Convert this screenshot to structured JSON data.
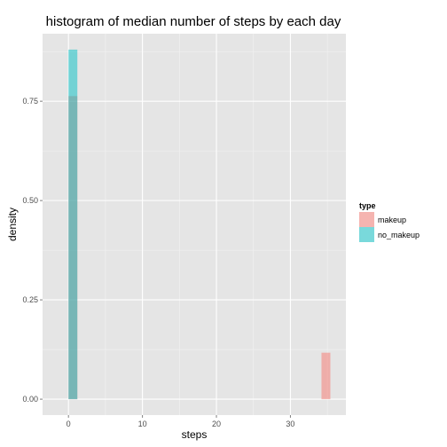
{
  "chart_data": {
    "type": "bar",
    "title": "histogram of median number of steps by each day",
    "xlabel": "steps",
    "ylabel": "density",
    "xlim": [
      -3.5,
      37.5
    ],
    "ylim": [
      -0.04,
      0.92
    ],
    "x_ticks": [
      0,
      10,
      20,
      30
    ],
    "x_tick_labels": [
      "0",
      "10",
      "20",
      "30"
    ],
    "y_ticks": [
      0.0,
      0.25,
      0.5,
      0.75
    ],
    "y_tick_labels": [
      "0.00",
      "0.25",
      "0.50",
      "0.75"
    ],
    "grid": true,
    "legend_position": "right",
    "legend_title": "type",
    "series": [
      {
        "name": "makeup",
        "color": "#F8766D",
        "bins": [
          {
            "x0": 0,
            "x1": 1.2,
            "density": 0.763
          },
          {
            "x0": 34.2,
            "x1": 35.4,
            "density": 0.117
          }
        ]
      },
      {
        "name": "no_makeup",
        "color": "#00BFC4",
        "bins": [
          {
            "x0": 0,
            "x1": 1.2,
            "density": 0.88
          }
        ]
      }
    ]
  }
}
